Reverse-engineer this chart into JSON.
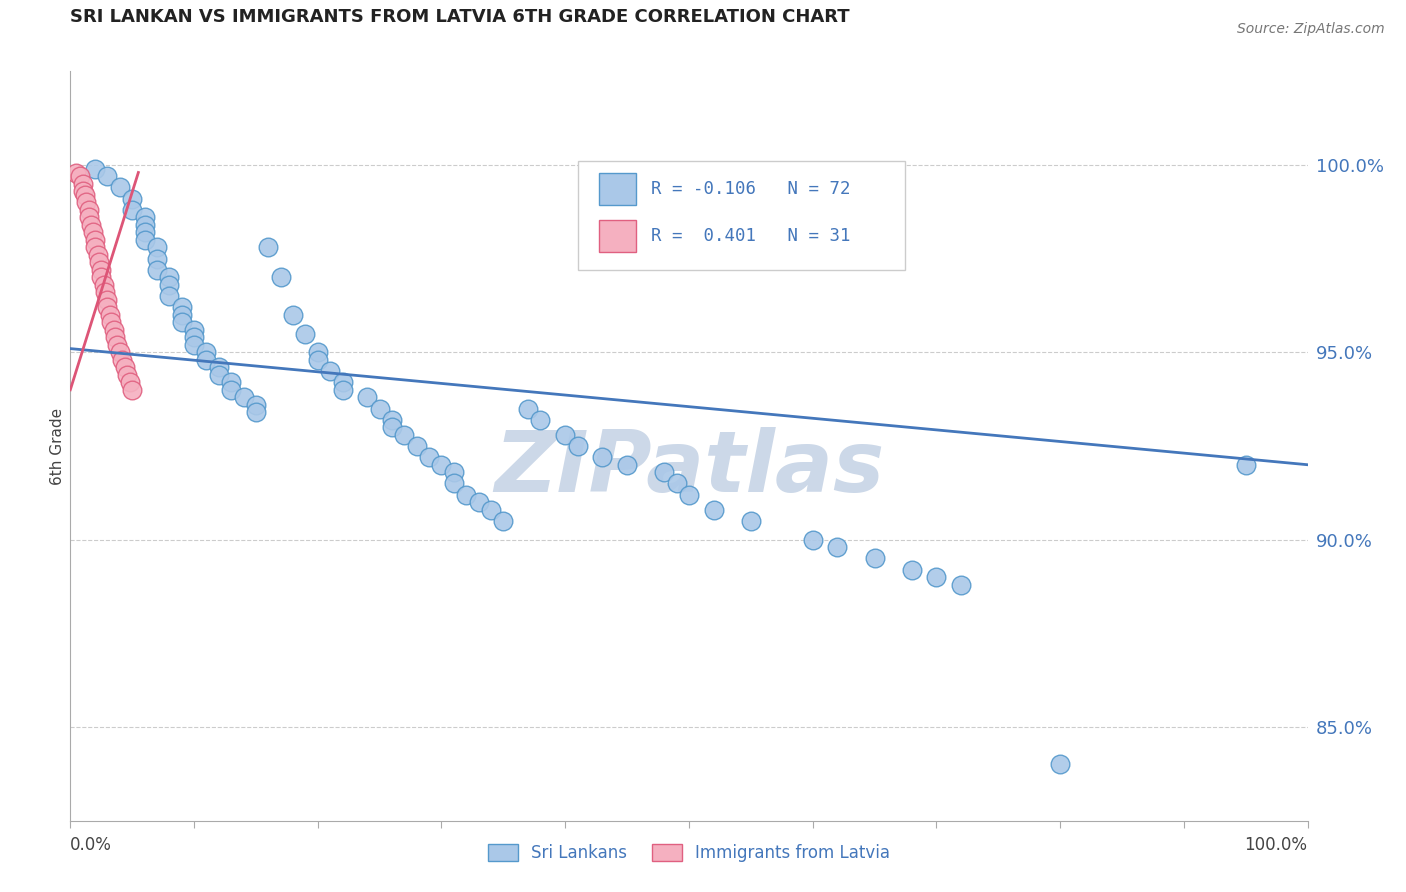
{
  "title": "SRI LANKAN VS IMMIGRANTS FROM LATVIA 6TH GRADE CORRELATION CHART",
  "source": "Source: ZipAtlas.com",
  "ylabel": "6th Grade",
  "ylabel_right_labels": [
    "100.0%",
    "95.0%",
    "90.0%",
    "85.0%"
  ],
  "ylabel_right_values": [
    1.0,
    0.95,
    0.9,
    0.85
  ],
  "xlim": [
    0.0,
    1.0
  ],
  "ylim": [
    0.825,
    1.025
  ],
  "grid_color": "#cccccc",
  "background_color": "#ffffff",
  "sri_lankans_color": "#aac8e8",
  "latvia_color": "#f5b0c0",
  "sri_lankans_edge_color": "#5599cc",
  "latvia_edge_color": "#e06080",
  "sri_lankans_line_color": "#4477bb",
  "latvia_line_color": "#dd5577",
  "R_sri": -0.106,
  "N_sri": 72,
  "R_lat": 0.401,
  "N_lat": 31,
  "sri_x": [
    0.02,
    0.03,
    0.04,
    0.05,
    0.05,
    0.06,
    0.06,
    0.06,
    0.06,
    0.07,
    0.07,
    0.07,
    0.08,
    0.08,
    0.08,
    0.09,
    0.09,
    0.09,
    0.1,
    0.1,
    0.1,
    0.11,
    0.11,
    0.12,
    0.12,
    0.13,
    0.13,
    0.14,
    0.15,
    0.15,
    0.16,
    0.17,
    0.18,
    0.19,
    0.2,
    0.2,
    0.21,
    0.22,
    0.22,
    0.24,
    0.25,
    0.26,
    0.26,
    0.27,
    0.28,
    0.29,
    0.3,
    0.31,
    0.31,
    0.32,
    0.33,
    0.34,
    0.35,
    0.37,
    0.38,
    0.4,
    0.41,
    0.43,
    0.45,
    0.48,
    0.49,
    0.5,
    0.52,
    0.55,
    0.6,
    0.62,
    0.65,
    0.68,
    0.7,
    0.72,
    0.8,
    0.95
  ],
  "sri_y": [
    0.999,
    0.997,
    0.994,
    0.991,
    0.988,
    0.986,
    0.984,
    0.982,
    0.98,
    0.978,
    0.975,
    0.972,
    0.97,
    0.968,
    0.965,
    0.962,
    0.96,
    0.958,
    0.956,
    0.954,
    0.952,
    0.95,
    0.948,
    0.946,
    0.944,
    0.942,
    0.94,
    0.938,
    0.936,
    0.934,
    0.978,
    0.97,
    0.96,
    0.955,
    0.95,
    0.948,
    0.945,
    0.942,
    0.94,
    0.938,
    0.935,
    0.932,
    0.93,
    0.928,
    0.925,
    0.922,
    0.92,
    0.918,
    0.915,
    0.912,
    0.91,
    0.908,
    0.905,
    0.935,
    0.932,
    0.928,
    0.925,
    0.922,
    0.92,
    0.918,
    0.915,
    0.912,
    0.908,
    0.905,
    0.9,
    0.898,
    0.895,
    0.892,
    0.89,
    0.888,
    0.84,
    0.92
  ],
  "lat_x": [
    0.005,
    0.008,
    0.01,
    0.01,
    0.012,
    0.013,
    0.015,
    0.015,
    0.017,
    0.018,
    0.02,
    0.02,
    0.022,
    0.023,
    0.025,
    0.025,
    0.027,
    0.028,
    0.03,
    0.03,
    0.032,
    0.033,
    0.035,
    0.036,
    0.038,
    0.04,
    0.042,
    0.044,
    0.046,
    0.048,
    0.05
  ],
  "lat_y": [
    0.998,
    0.997,
    0.995,
    0.993,
    0.992,
    0.99,
    0.988,
    0.986,
    0.984,
    0.982,
    0.98,
    0.978,
    0.976,
    0.974,
    0.972,
    0.97,
    0.968,
    0.966,
    0.964,
    0.962,
    0.96,
    0.958,
    0.956,
    0.954,
    0.952,
    0.95,
    0.948,
    0.946,
    0.944,
    0.942,
    0.94
  ],
  "sri_line_x": [
    0.0,
    1.0
  ],
  "sri_line_y": [
    0.951,
    0.92
  ],
  "lat_line_x": [
    0.0,
    0.055
  ],
  "lat_line_y": [
    0.94,
    0.998
  ],
  "watermark": "ZIPatlas",
  "watermark_color": "#ccd8e8"
}
